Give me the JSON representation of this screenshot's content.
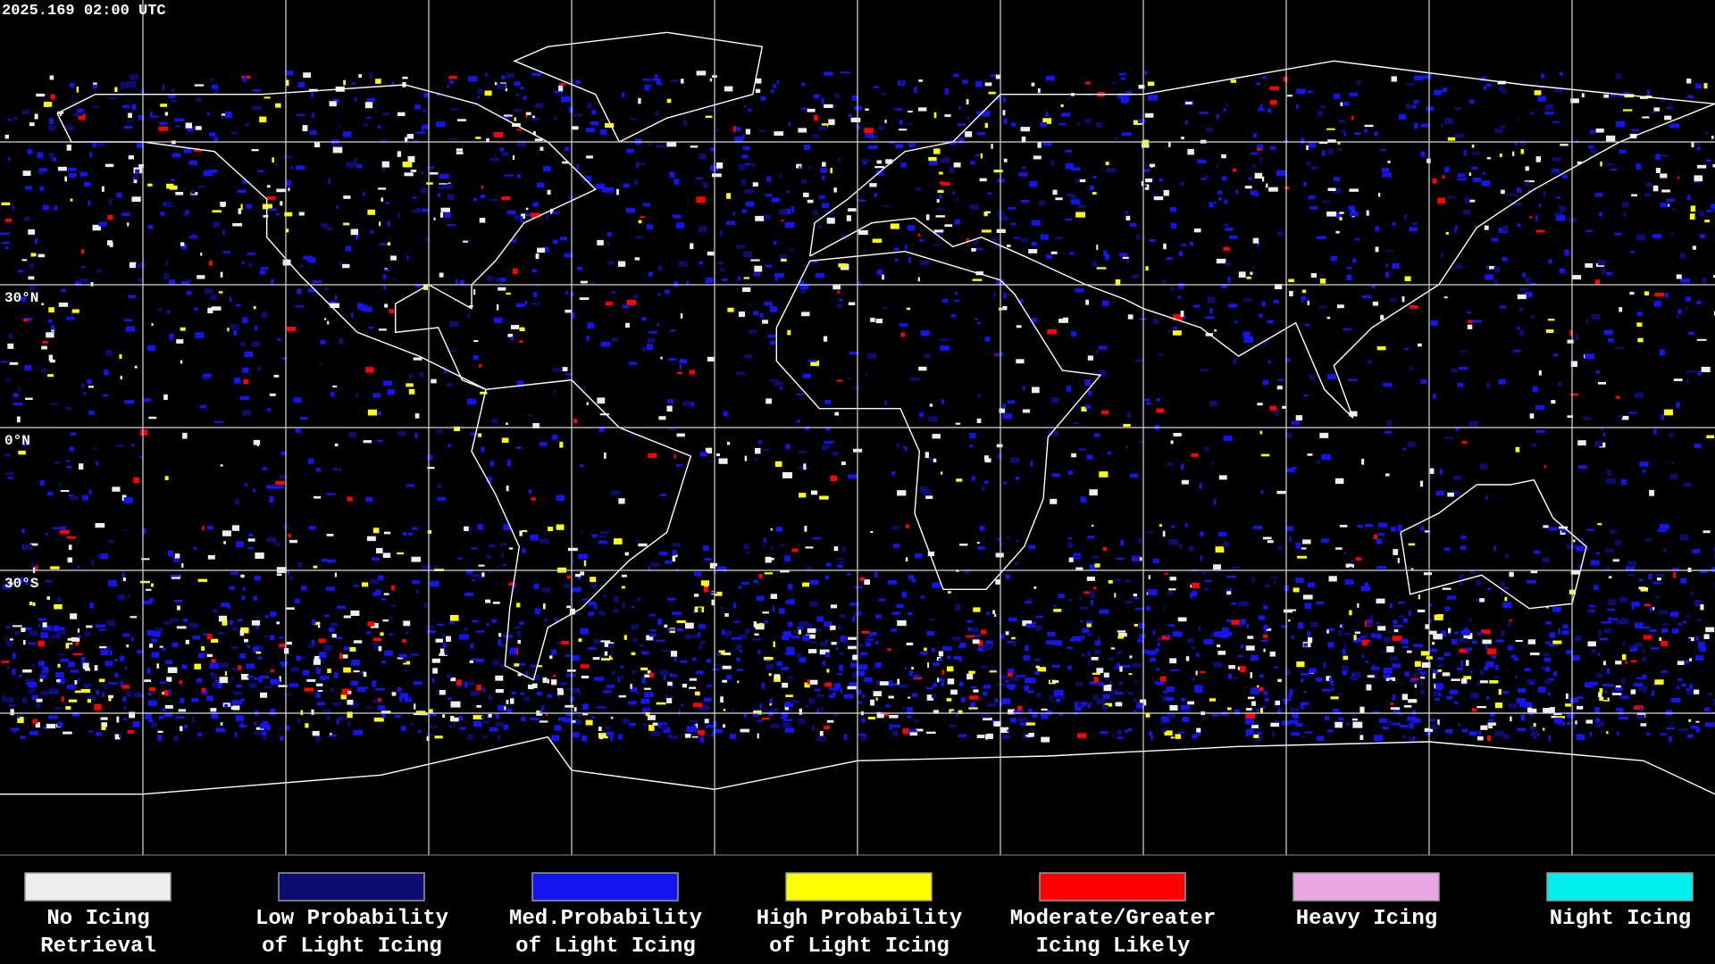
{
  "header": {
    "timestamp": "2025.169 02:00 UTC"
  },
  "map": {
    "latitude_labels": [
      "30°N",
      "0°N",
      "30°S"
    ]
  },
  "legend": {
    "items": [
      {
        "lines": [
          "No Icing",
          "Retrieval"
        ],
        "color": "#eeeeee"
      },
      {
        "lines": [
          "Low Probability",
          "of Light Icing"
        ],
        "color": "#0c0c70"
      },
      {
        "lines": [
          "Med.Probability",
          "of Light Icing"
        ],
        "color": "#1414f0"
      },
      {
        "lines": [
          "High Probability",
          "of Light Icing"
        ],
        "color": "#ffff00"
      },
      {
        "lines": [
          "Moderate/Greater",
          "Icing Likely"
        ],
        "color": "#ff0000"
      },
      {
        "lines": [
          "Heavy Icing"
        ],
        "color": "#e8a8e4"
      },
      {
        "lines": [
          "Night Icing"
        ],
        "color": "#00f0f0"
      }
    ]
  }
}
